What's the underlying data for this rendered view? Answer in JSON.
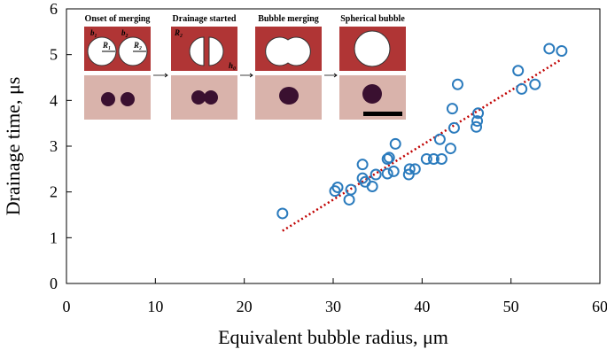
{
  "chart_data": {
    "type": "scatter",
    "x_label": "Equivalent bubble radius, μm",
    "y_label": "Drainage time, μs",
    "color": "#2b7bbd",
    "x": [
      24.3,
      30.2,
      30.5,
      31.8,
      32.0,
      33.3,
      33.3,
      33.6,
      34.4,
      34.8,
      36.1,
      36.3,
      36.1,
      36.8,
      37.0,
      38.5,
      38.6,
      39.2,
      40.5,
      41.3,
      42.0,
      42.2,
      43.2,
      43.4,
      43.6,
      44.0,
      46.1,
      46.2,
      46.3,
      50.8,
      51.2,
      52.7,
      54.3,
      55.7
    ],
    "values": [
      1.53,
      2.02,
      2.1,
      1.83,
      2.05,
      2.6,
      2.3,
      2.22,
      2.12,
      2.38,
      2.72,
      2.75,
      2.4,
      2.45,
      3.05,
      2.38,
      2.5,
      2.5,
      2.72,
      2.72,
      3.15,
      2.72,
      2.95,
      3.82,
      3.4,
      4.35,
      3.42,
      3.55,
      3.72,
      4.65,
      4.25,
      4.35,
      5.13,
      5.08
    ],
    "trendline": {
      "x": [
        24.3,
        55.7
      ],
      "values": [
        1.15,
        4.9
      ],
      "color": "#c00000",
      "style": "dotted"
    },
    "xlim": [
      0,
      60
    ],
    "xticks": [
      0,
      10,
      20,
      30,
      40,
      50,
      60
    ],
    "ylim": [
      0,
      6
    ],
    "yticks": [
      0,
      1,
      2,
      3,
      4,
      5,
      6
    ]
  },
  "inset": {
    "panels": [
      {
        "title": "Onset of merging",
        "labels": [
          "b₁",
          "b₂",
          "R₁",
          "R₂"
        ]
      },
      {
        "title": "Drainage started",
        "labels": [
          "R₂",
          "h₀"
        ]
      },
      {
        "title": "Bubble merging",
        "labels": []
      },
      {
        "title": "Spherical bubble",
        "labels": []
      }
    ]
  }
}
